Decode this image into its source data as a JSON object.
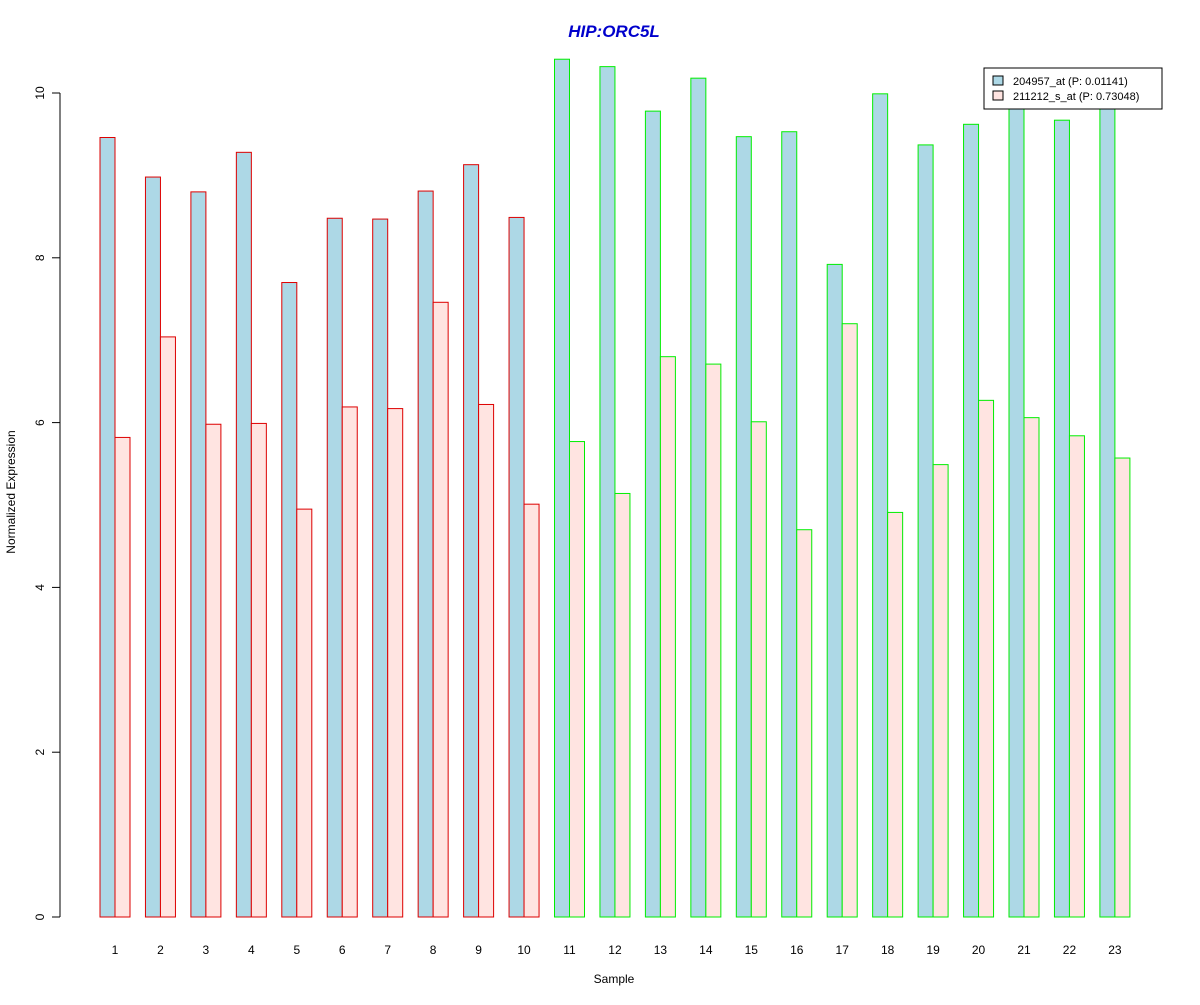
{
  "chart_data": {
    "type": "bar",
    "title": "HIP:ORC5L",
    "xlabel": "Sample",
    "ylabel": "Normalized Expression",
    "categories": [
      "1",
      "2",
      "3",
      "4",
      "5",
      "6",
      "7",
      "8",
      "9",
      "10",
      "11",
      "12",
      "13",
      "14",
      "15",
      "16",
      "17",
      "18",
      "19",
      "20",
      "21",
      "22",
      "23"
    ],
    "ylim": [
      0,
      10.4
    ],
    "yticks": [
      "0",
      "2",
      "4",
      "6",
      "8",
      "10"
    ],
    "grid": false,
    "legend_position": "top-right",
    "series": [
      {
        "name": "204957_at (P: 0.01141)",
        "fill": "#add8e6",
        "values": [
          9.46,
          8.98,
          8.8,
          9.28,
          7.7,
          8.48,
          8.47,
          8.81,
          9.13,
          8.49,
          10.41,
          10.32,
          9.78,
          10.18,
          9.47,
          9.53,
          7.92,
          9.99,
          9.37,
          9.62,
          9.9,
          9.67,
          9.9
        ]
      },
      {
        "name": "211212_s_at (P: 0.73048)",
        "fill": "#ffe4e1",
        "values": [
          5.82,
          7.04,
          5.98,
          5.99,
          4.95,
          6.19,
          6.17,
          7.46,
          6.22,
          5.01,
          5.77,
          5.14,
          6.8,
          6.71,
          6.01,
          4.7,
          7.2,
          4.91,
          5.49,
          6.27,
          6.06,
          5.84,
          5.57
        ]
      }
    ],
    "groups": [
      {
        "border": "#dd0000",
        "samples": [
          "1",
          "2",
          "3",
          "4",
          "5",
          "6",
          "7",
          "8",
          "9",
          "10"
        ]
      },
      {
        "border": "#00ee00",
        "samples": [
          "11",
          "12",
          "13",
          "14",
          "15",
          "16",
          "17",
          "18",
          "19",
          "20",
          "21",
          "22",
          "23"
        ]
      }
    ],
    "title_color": "#0000cc"
  }
}
